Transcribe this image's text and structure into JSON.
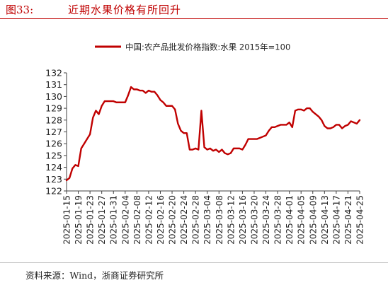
{
  "figure": {
    "number": "图33:",
    "title": "近期水果价格有所回升",
    "source": "资料来源：Wind，浙商证券研究所"
  },
  "chart_data": {
    "type": "line",
    "legend": "中国:农产品批发价格指数:水果 2015年=100",
    "legend_position": "top",
    "line_color": "#c00000",
    "grid": false,
    "ylim": [
      122,
      132
    ],
    "yticks": [
      122,
      123,
      124,
      125,
      126,
      127,
      128,
      129,
      130,
      131,
      132
    ],
    "xlim": [
      "2025-01-15",
      "2025-04-25"
    ],
    "xticks": [
      "2025-01-15",
      "2025-01-19",
      "2025-01-23",
      "2025-01-27",
      "2025-01-31",
      "2025-02-04",
      "2025-02-08",
      "2025-02-12",
      "2025-02-16",
      "2025-02-20",
      "2025-02-24",
      "2025-02-28",
      "2025-03-04",
      "2025-03-08",
      "2025-03-12",
      "2025-03-16",
      "2025-03-20",
      "2025-03-24",
      "2025-03-28",
      "2025-04-01",
      "2025-04-05",
      "2025-04-09",
      "2025-04-13",
      "2025-04-17",
      "2025-04-21",
      "2025-04-25"
    ],
    "series": [
      {
        "name": "中国:农产品批发价格指数:水果 2015年=100",
        "points": [
          [
            "2025-01-15",
            122.9
          ],
          [
            "2025-01-16",
            123.1
          ],
          [
            "2025-01-17",
            123.9
          ],
          [
            "2025-01-18",
            124.2
          ],
          [
            "2025-01-19",
            124.1
          ],
          [
            "2025-01-20",
            125.6
          ],
          [
            "2025-01-21",
            126.0
          ],
          [
            "2025-01-22",
            126.4
          ],
          [
            "2025-01-23",
            126.8
          ],
          [
            "2025-01-24",
            128.2
          ],
          [
            "2025-01-25",
            128.8
          ],
          [
            "2025-01-26",
            128.5
          ],
          [
            "2025-01-27",
            129.2
          ],
          [
            "2025-01-28",
            129.6
          ],
          [
            "2025-01-29",
            129.6
          ],
          [
            "2025-01-30",
            129.6
          ],
          [
            "2025-01-31",
            129.6
          ],
          [
            "2025-02-01",
            129.5
          ],
          [
            "2025-02-02",
            129.5
          ],
          [
            "2025-02-03",
            129.5
          ],
          [
            "2025-02-04",
            129.5
          ],
          [
            "2025-02-05",
            130.1
          ],
          [
            "2025-02-06",
            130.8
          ],
          [
            "2025-02-07",
            130.6
          ],
          [
            "2025-02-08",
            130.6
          ],
          [
            "2025-02-09",
            130.5
          ],
          [
            "2025-02-10",
            130.5
          ],
          [
            "2025-02-11",
            130.3
          ],
          [
            "2025-02-12",
            130.5
          ],
          [
            "2025-02-13",
            130.4
          ],
          [
            "2025-02-14",
            130.4
          ],
          [
            "2025-02-15",
            130.1
          ],
          [
            "2025-02-16",
            129.7
          ],
          [
            "2025-02-17",
            129.5
          ],
          [
            "2025-02-18",
            129.2
          ],
          [
            "2025-02-19",
            129.2
          ],
          [
            "2025-02-20",
            129.2
          ],
          [
            "2025-02-21",
            128.9
          ],
          [
            "2025-02-22",
            127.7
          ],
          [
            "2025-02-23",
            127.1
          ],
          [
            "2025-02-24",
            126.9
          ],
          [
            "2025-02-25",
            126.9
          ],
          [
            "2025-02-26",
            125.5
          ],
          [
            "2025-02-27",
            125.5
          ],
          [
            "2025-02-28",
            125.6
          ],
          [
            "2025-03-01",
            125.5
          ],
          [
            "2025-03-02",
            128.8
          ],
          [
            "2025-03-03",
            125.7
          ],
          [
            "2025-03-04",
            125.5
          ],
          [
            "2025-03-05",
            125.6
          ],
          [
            "2025-03-06",
            125.4
          ],
          [
            "2025-03-07",
            125.5
          ],
          [
            "2025-03-08",
            125.3
          ],
          [
            "2025-03-09",
            125.5
          ],
          [
            "2025-03-10",
            125.2
          ],
          [
            "2025-03-11",
            125.1
          ],
          [
            "2025-03-12",
            125.2
          ],
          [
            "2025-03-13",
            125.6
          ],
          [
            "2025-03-14",
            125.6
          ],
          [
            "2025-03-15",
            125.6
          ],
          [
            "2025-03-16",
            125.5
          ],
          [
            "2025-03-17",
            125.9
          ],
          [
            "2025-03-18",
            126.4
          ],
          [
            "2025-03-19",
            126.4
          ],
          [
            "2025-03-20",
            126.4
          ],
          [
            "2025-03-21",
            126.4
          ],
          [
            "2025-03-22",
            126.5
          ],
          [
            "2025-03-23",
            126.6
          ],
          [
            "2025-03-24",
            126.7
          ],
          [
            "2025-03-25",
            127.1
          ],
          [
            "2025-03-26",
            127.4
          ],
          [
            "2025-03-27",
            127.4
          ],
          [
            "2025-03-28",
            127.5
          ],
          [
            "2025-03-29",
            127.6
          ],
          [
            "2025-03-30",
            127.6
          ],
          [
            "2025-03-31",
            127.6
          ],
          [
            "2025-04-01",
            127.8
          ],
          [
            "2025-04-02",
            127.4
          ],
          [
            "2025-04-03",
            128.8
          ],
          [
            "2025-04-04",
            128.9
          ],
          [
            "2025-04-05",
            128.9
          ],
          [
            "2025-04-06",
            128.8
          ],
          [
            "2025-04-07",
            129.0
          ],
          [
            "2025-04-08",
            129.0
          ],
          [
            "2025-04-09",
            128.7
          ],
          [
            "2025-04-10",
            128.5
          ],
          [
            "2025-04-11",
            128.3
          ],
          [
            "2025-04-12",
            128.0
          ],
          [
            "2025-04-13",
            127.5
          ],
          [
            "2025-04-14",
            127.3
          ],
          [
            "2025-04-15",
            127.3
          ],
          [
            "2025-04-16",
            127.4
          ],
          [
            "2025-04-17",
            127.6
          ],
          [
            "2025-04-18",
            127.6
          ],
          [
            "2025-04-19",
            127.3
          ],
          [
            "2025-04-20",
            127.5
          ],
          [
            "2025-04-21",
            127.6
          ],
          [
            "2025-04-22",
            127.9
          ],
          [
            "2025-04-23",
            127.8
          ],
          [
            "2025-04-24",
            127.7
          ],
          [
            "2025-04-25",
            128.0
          ]
        ]
      }
    ]
  }
}
